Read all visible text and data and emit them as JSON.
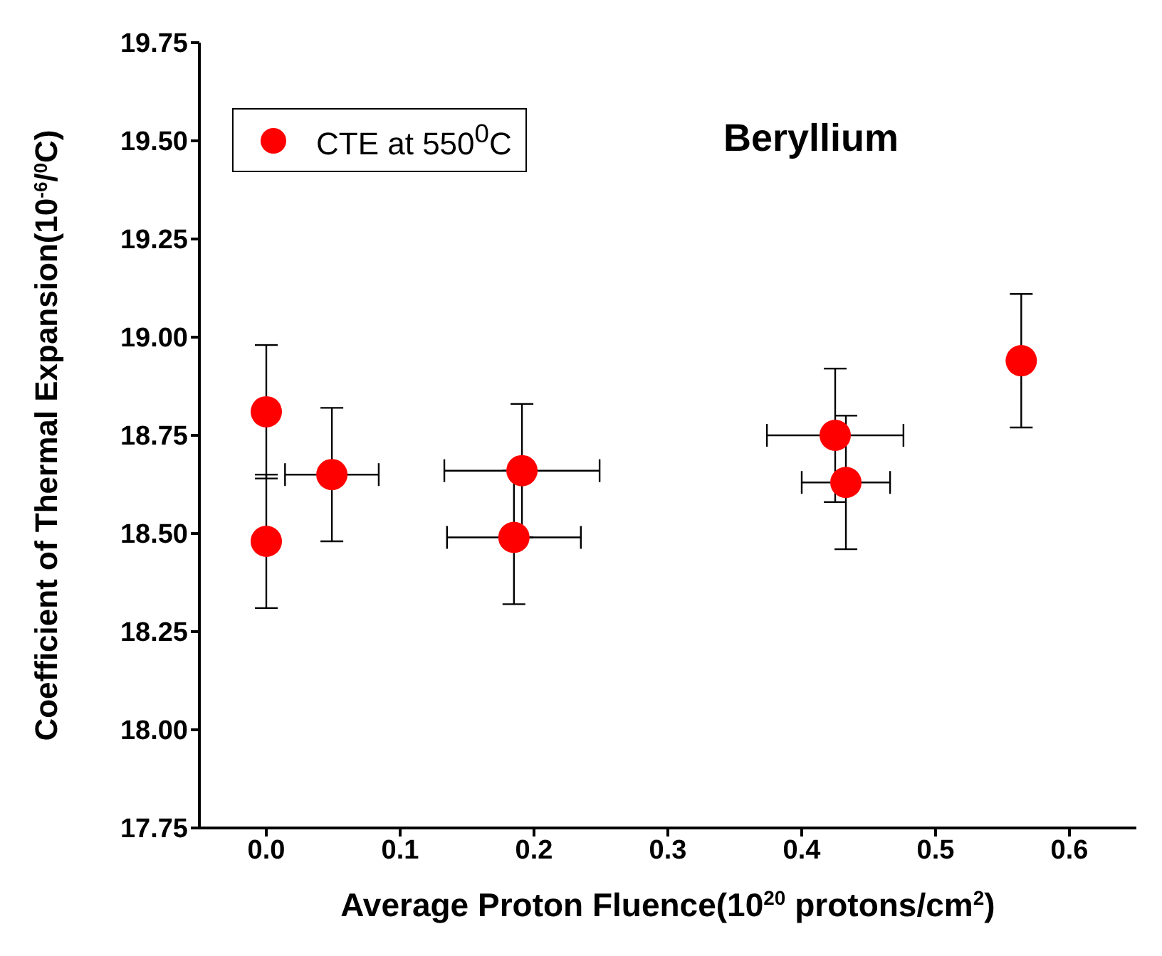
{
  "chart_data": {
    "type": "scatter",
    "title": "Beryllium",
    "xlabel": "Average Proton Fluence(10$^{20}$ protons/cm$^{2}$)",
    "ylabel": "Coefficient of Thermal Expansion(10$^{-6}$/$^{0}$C)",
    "x": [
      0.0,
      0.0,
      0.049,
      0.191,
      0.185,
      0.425,
      0.433,
      0.564
    ],
    "series": [
      {
        "name": "CTE at 550$^{0}$C",
        "color": "#ff0000",
        "values": [
          18.81,
          18.48,
          18.65,
          18.66,
          18.49,
          18.75,
          18.63,
          18.94
        ],
        "errors": [
          0.17,
          0.17,
          0.17,
          0.17,
          0.17,
          0.17,
          0.17,
          0.17
        ],
        "xerrors": [
          null,
          null,
          0.035,
          0.058,
          0.05,
          0.051,
          0.033,
          null
        ]
      }
    ],
    "xlim": [
      -0.05,
      0.65
    ],
    "xticks": [
      {
        "value": 0,
        "label": "0.0"
      },
      0.1,
      0.2,
      0.3,
      0.4,
      0.5,
      0.6
    ],
    "ylim": [
      17.75,
      19.75
    ],
    "yticks": [
      17.75,
      {
        "value": 18,
        "label": "18.00"
      },
      18.25,
      {
        "value": 18.5,
        "label": "18.50"
      },
      18.75,
      {
        "value": 19,
        "label": "19.00"
      },
      19.25,
      {
        "value": 19.5,
        "label": "19.50"
      },
      19.75
    ],
    "marker": "circle",
    "grid": false,
    "legend": "top left"
  }
}
